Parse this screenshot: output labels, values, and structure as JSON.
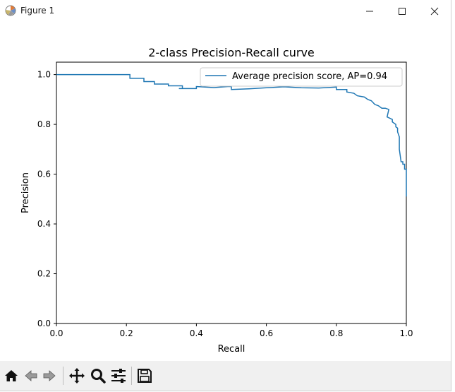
{
  "window": {
    "title": "Figure 1"
  },
  "chart_data": {
    "type": "line",
    "title": "2-class Precision-Recall curve",
    "xlabel": "Recall",
    "ylabel": "Precision",
    "xlim": [
      0.0,
      1.0
    ],
    "ylim": [
      0.0,
      1.05
    ],
    "xticks": [
      "0.0",
      "0.2",
      "0.4",
      "0.6",
      "0.8",
      "1.0"
    ],
    "yticks": [
      "0.0",
      "0.2",
      "0.4",
      "0.6",
      "0.8",
      "1.0"
    ],
    "grid": false,
    "legend": "top-right",
    "color": "#1f77b4",
    "series": [
      {
        "name": "Average precision score, AP=0.94",
        "x": [
          0.0,
          0.21,
          0.21,
          0.25,
          0.25,
          0.28,
          0.28,
          0.32,
          0.32,
          0.36,
          0.36,
          0.35,
          0.4,
          0.4,
          0.45,
          0.49,
          0.5,
          0.5,
          0.55,
          0.6,
          0.65,
          0.7,
          0.75,
          0.8,
          0.8,
          0.83,
          0.83,
          0.85,
          0.86,
          0.88,
          0.89,
          0.9,
          0.91,
          0.92,
          0.93,
          0.94,
          0.95,
          0.945,
          0.96,
          0.96,
          0.97,
          0.97,
          0.975,
          0.975,
          0.98,
          0.98,
          0.985,
          0.99,
          0.99,
          0.995,
          0.995,
          1.0,
          1.0
        ],
        "y": [
          1.0,
          1.0,
          0.985,
          0.985,
          0.972,
          0.972,
          0.962,
          0.962,
          0.955,
          0.955,
          0.944,
          0.944,
          0.944,
          0.952,
          0.948,
          0.952,
          0.952,
          0.94,
          0.943,
          0.947,
          0.951,
          0.947,
          0.946,
          0.95,
          0.94,
          0.94,
          0.93,
          0.925,
          0.915,
          0.91,
          0.9,
          0.895,
          0.88,
          0.875,
          0.865,
          0.865,
          0.86,
          0.83,
          0.82,
          0.81,
          0.8,
          0.79,
          0.785,
          0.77,
          0.75,
          0.7,
          0.65,
          0.65,
          0.64,
          0.64,
          0.62,
          0.62,
          0.51
        ]
      }
    ]
  },
  "toolbar": {
    "buttons": [
      "home-icon",
      "back-arrow-icon",
      "forward-arrow-icon",
      "pan-icon",
      "zoom-icon",
      "configure-subplots-icon",
      "save-icon"
    ]
  }
}
